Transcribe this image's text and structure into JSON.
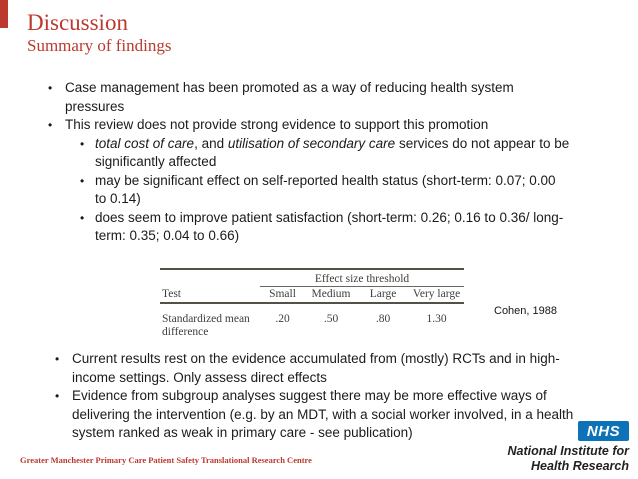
{
  "slide": {
    "title": "Discussion",
    "subtitle": "Summary of findings",
    "bullet_char": "•",
    "footer": "Greater Manchester Primary Care Patient Safety Translational Research Centre"
  },
  "bullets_top": [
    {
      "text": "Case management has been promoted as a way of reducing health system pressures"
    },
    {
      "text": "This review does not provide strong evidence to support this promotion"
    },
    {
      "parts": [
        {
          "text": "total cost of care"
        },
        {
          "text": ", and "
        },
        {
          "text": "utilisation of secondary care"
        },
        {
          "text": " services do not appear to be significantly affected"
        }
      ]
    },
    {
      "text": "may be significant effect on self-reported health status (short-term: 0.07; 0.00 to 0.14)"
    },
    {
      "text": "does seem to improve patient satisfaction (short-term: 0.26; 0.16 to 0.36/ long-term: 0.35; 0.04 to 0.66)"
    }
  ],
  "effect_table": {
    "spanner": "Effect size threshold",
    "row_header": "Test",
    "columns": [
      "Small",
      "Medium",
      "Large",
      "Very large"
    ],
    "rows": [
      {
        "label": "Standardized mean difference",
        "values": [
          ".20",
          ".50",
          ".80",
          "1.30"
        ]
      }
    ],
    "caption": "Cohen, 1988"
  },
  "bullets_bottom": [
    {
      "text": "Current results rest on the evidence accumulated from (mostly) RCTs and in high-income settings. Only assess direct effects"
    },
    {
      "text": "Evidence from subgroup analyses suggest there may be more effective ways of delivering the intervention (e.g. by an MDT, with a social worker involved, in a health system ranked as weak in primary care - see publication)"
    }
  ],
  "branding": {
    "nhs_logo_text": "NHS",
    "line1": "National Institute for",
    "line2": "Health Research"
  },
  "colors": {
    "accent_red": "#bb392e",
    "nhs_blue": "#0e72b8"
  }
}
